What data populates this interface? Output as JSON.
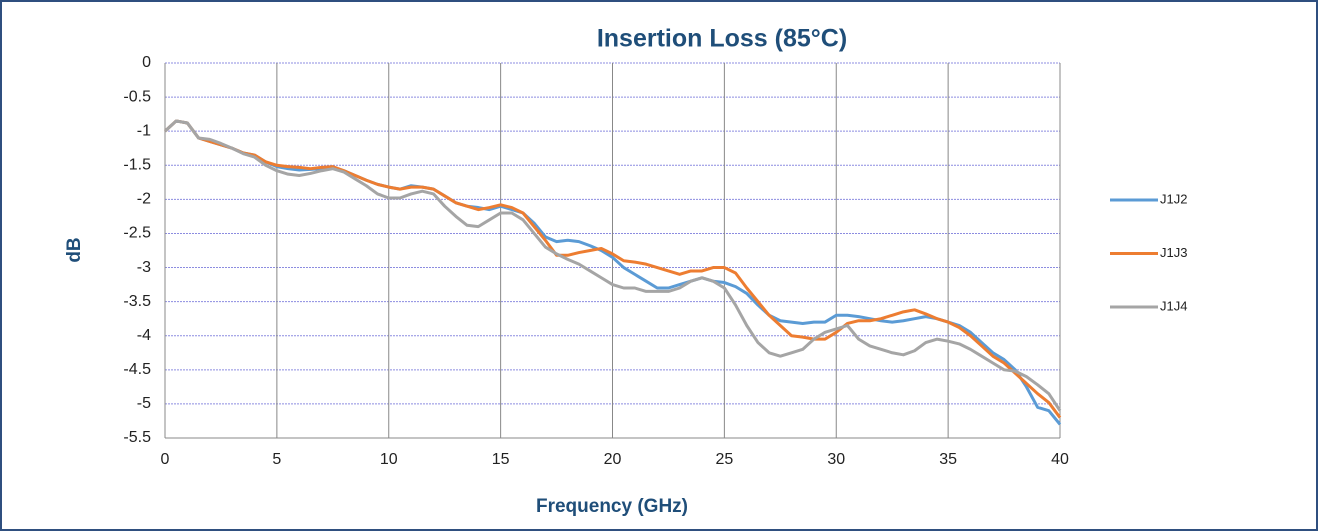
{
  "chart_data": {
    "type": "line",
    "title": "Insertion Loss (85°C)",
    "x_label": "Frequency (GHz)",
    "y_label": "dB",
    "x": [
      0,
      0.5,
      1,
      1.5,
      2,
      2.5,
      3,
      3.5,
      4,
      4.5,
      5,
      5.5,
      6,
      6.5,
      7,
      7.5,
      8,
      8.5,
      9,
      9.5,
      10,
      10.5,
      11,
      11.5,
      12,
      12.5,
      13,
      13.5,
      14,
      14.5,
      15,
      15.5,
      16,
      16.5,
      17,
      17.5,
      18,
      18.5,
      19,
      19.5,
      20,
      20.5,
      21,
      21.5,
      22,
      22.5,
      23,
      23.5,
      24,
      24.5,
      25,
      25.5,
      26,
      26.5,
      27,
      27.5,
      28,
      28.5,
      29,
      29.5,
      30,
      30.5,
      31,
      31.5,
      32,
      32.5,
      33,
      33.5,
      34,
      34.5,
      35,
      35.5,
      36,
      36.5,
      37,
      37.5,
      38,
      38.5,
      39,
      39.5,
      40
    ],
    "series": [
      {
        "name": "J1J2",
        "color": "#5b9bd5",
        "values": [
          -1.0,
          -0.85,
          -0.88,
          -1.1,
          -1.15,
          -1.2,
          -1.25,
          -1.32,
          -1.35,
          -1.45,
          -1.52,
          -1.55,
          -1.57,
          -1.56,
          -1.55,
          -1.53,
          -1.58,
          -1.65,
          -1.72,
          -1.78,
          -1.82,
          -1.85,
          -1.8,
          -1.82,
          -1.85,
          -1.95,
          -2.05,
          -2.1,
          -2.12,
          -2.15,
          -2.1,
          -2.15,
          -2.2,
          -2.35,
          -2.55,
          -2.62,
          -2.6,
          -2.62,
          -2.68,
          -2.75,
          -2.85,
          -3.0,
          -3.1,
          -3.2,
          -3.3,
          -3.3,
          -3.25,
          -3.2,
          -3.15,
          -3.2,
          -3.22,
          -3.28,
          -3.38,
          -3.55,
          -3.7,
          -3.78,
          -3.8,
          -3.82,
          -3.8,
          -3.8,
          -3.7,
          -3.7,
          -3.72,
          -3.75,
          -3.78,
          -3.8,
          -3.78,
          -3.75,
          -3.72,
          -3.75,
          -3.8,
          -3.85,
          -3.95,
          -4.1,
          -4.25,
          -4.35,
          -4.5,
          -4.75,
          -5.05,
          -5.1,
          -5.3
        ]
      },
      {
        "name": "J1J3",
        "color": "#ed7d31",
        "values": [
          -1.0,
          -0.85,
          -0.88,
          -1.1,
          -1.15,
          -1.2,
          -1.25,
          -1.32,
          -1.35,
          -1.45,
          -1.5,
          -1.52,
          -1.53,
          -1.55,
          -1.53,
          -1.52,
          -1.58,
          -1.65,
          -1.72,
          -1.78,
          -1.82,
          -1.85,
          -1.82,
          -1.82,
          -1.85,
          -1.95,
          -2.05,
          -2.1,
          -2.15,
          -2.12,
          -2.08,
          -2.12,
          -2.2,
          -2.4,
          -2.6,
          -2.82,
          -2.82,
          -2.78,
          -2.75,
          -2.72,
          -2.8,
          -2.9,
          -2.92,
          -2.95,
          -3.0,
          -3.05,
          -3.1,
          -3.05,
          -3.05,
          -3.0,
          -3.0,
          -3.08,
          -3.3,
          -3.5,
          -3.7,
          -3.85,
          -4.0,
          -4.02,
          -4.05,
          -4.05,
          -3.95,
          -3.82,
          -3.78,
          -3.78,
          -3.75,
          -3.7,
          -3.65,
          -3.62,
          -3.68,
          -3.75,
          -3.8,
          -3.88,
          -4.0,
          -4.15,
          -4.3,
          -4.4,
          -4.55,
          -4.7,
          -4.85,
          -4.98,
          -5.2
        ]
      },
      {
        "name": "J1J4",
        "color": "#a5a5a5",
        "values": [
          -1.0,
          -0.85,
          -0.88,
          -1.1,
          -1.12,
          -1.18,
          -1.25,
          -1.33,
          -1.38,
          -1.5,
          -1.58,
          -1.63,
          -1.65,
          -1.62,
          -1.58,
          -1.55,
          -1.6,
          -1.7,
          -1.8,
          -1.92,
          -1.98,
          -1.98,
          -1.92,
          -1.88,
          -1.92,
          -2.1,
          -2.25,
          -2.38,
          -2.4,
          -2.3,
          -2.2,
          -2.2,
          -2.3,
          -2.5,
          -2.7,
          -2.8,
          -2.88,
          -2.95,
          -3.05,
          -3.15,
          -3.25,
          -3.3,
          -3.3,
          -3.35,
          -3.35,
          -3.35,
          -3.3,
          -3.2,
          -3.15,
          -3.2,
          -3.3,
          -3.55,
          -3.85,
          -4.1,
          -4.25,
          -4.3,
          -4.25,
          -4.2,
          -4.05,
          -3.95,
          -3.9,
          -3.85,
          -4.05,
          -4.15,
          -4.2,
          -4.25,
          -4.28,
          -4.22,
          -4.1,
          -4.05,
          -4.08,
          -4.12,
          -4.2,
          -4.3,
          -4.4,
          -4.5,
          -4.52,
          -4.6,
          -4.72,
          -4.85,
          -5.1
        ]
      }
    ],
    "xlim": [
      0,
      40
    ],
    "xticks": [
      0,
      5,
      10,
      15,
      20,
      25,
      30,
      35,
      40
    ],
    "ylim": [
      -5.5,
      0
    ],
    "yticks": [
      0,
      -0.5,
      -1,
      -1.5,
      -2,
      -2.5,
      -3,
      -3.5,
      -4,
      -4.5,
      -5,
      -5.5
    ],
    "grid": true,
    "legend": "right"
  }
}
